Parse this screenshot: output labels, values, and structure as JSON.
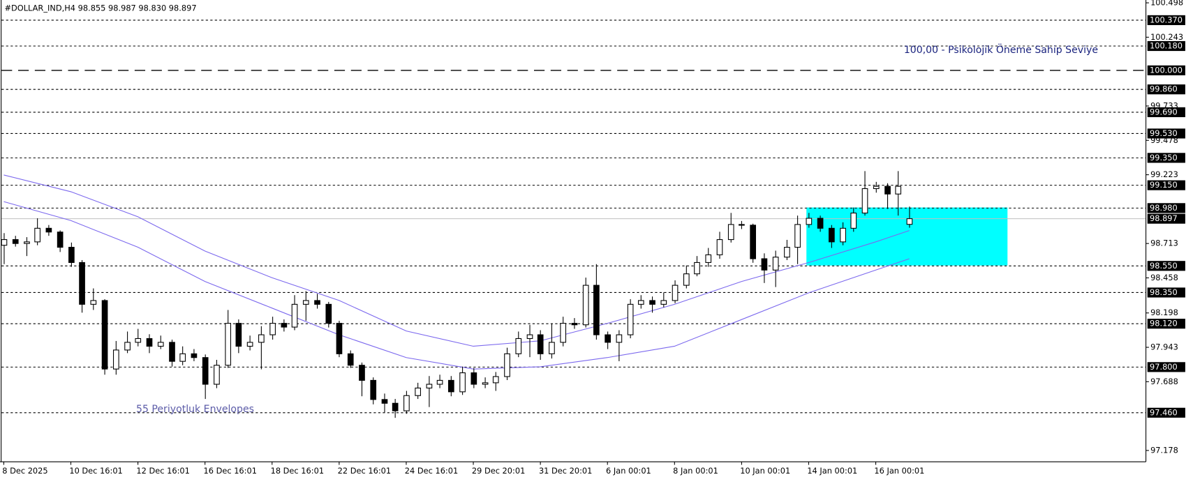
{
  "chart_data": {
    "type": "candlestick",
    "title": "#DOLLAR_IND,H4  98.855 98.987 98.830 98.897",
    "annotations": [
      "100,00 -  Psikolojik Öneme Sahip Seviye",
      "55 Periyotluk Envelopes"
    ],
    "categories": [
      "8 Dec 2025",
      null,
      null,
      null,
      null,
      null,
      "10 Dec 16:01",
      null,
      null,
      null,
      null,
      null,
      "12 Dec 16:01",
      null,
      null,
      null,
      null,
      null,
      "16 Dec 16:01",
      null,
      null,
      null,
      null,
      null,
      "18 Dec 16:01",
      null,
      null,
      null,
      null,
      null,
      "22 Dec 16:01",
      null,
      null,
      null,
      null,
      null,
      "24 Dec 16:01",
      null,
      null,
      null,
      null,
      null,
      "29 Dec 20:01",
      null,
      null,
      null,
      null,
      null,
      "31 Dec 20:01",
      null,
      null,
      null,
      null,
      null,
      "6 Jan 00:01",
      null,
      null,
      null,
      null,
      null,
      "8 Jan 00:01",
      null,
      null,
      null,
      null,
      null,
      "10 Jan 00:01",
      null,
      null,
      null,
      null,
      null,
      "14 Jan 00:01",
      null,
      null,
      null,
      null,
      null,
      "16 Jan 00:01",
      null,
      null,
      null
    ],
    "candles": [
      [
        98.7,
        98.79,
        98.56,
        98.742
      ],
      [
        98.742,
        98.77,
        98.69,
        98.713
      ],
      [
        98.713,
        98.76,
        98.62,
        98.725
      ],
      [
        98.725,
        98.9,
        98.7,
        98.826
      ],
      [
        98.826,
        98.85,
        98.77,
        98.798
      ],
      [
        98.798,
        98.81,
        98.65,
        98.685
      ],
      [
        98.685,
        98.72,
        98.54,
        98.572
      ],
      [
        98.572,
        98.59,
        98.2,
        98.262
      ],
      [
        98.262,
        98.38,
        98.22,
        98.29
      ],
      [
        98.29,
        98.3,
        97.74,
        97.782
      ],
      [
        97.782,
        97.99,
        97.74,
        97.923
      ],
      [
        97.923,
        98.06,
        97.9,
        97.98
      ],
      [
        97.98,
        98.08,
        97.95,
        98.008
      ],
      [
        98.008,
        98.04,
        97.9,
        97.951
      ],
      [
        97.951,
        98.03,
        97.93,
        97.98
      ],
      [
        97.98,
        98.0,
        97.8,
        97.839
      ],
      [
        97.839,
        97.95,
        97.81,
        97.895
      ],
      [
        97.895,
        97.93,
        97.84,
        97.867
      ],
      [
        97.867,
        97.89,
        97.56,
        97.669
      ],
      [
        97.669,
        97.85,
        97.64,
        97.81
      ],
      [
        97.81,
        98.22,
        97.79,
        98.121
      ],
      [
        98.121,
        98.15,
        97.9,
        97.951
      ],
      [
        97.951,
        98.03,
        97.92,
        97.98
      ],
      [
        97.98,
        98.1,
        97.78,
        98.036
      ],
      [
        98.036,
        98.17,
        98.0,
        98.121
      ],
      [
        98.121,
        98.15,
        98.06,
        98.093
      ],
      [
        98.093,
        98.33,
        98.07,
        98.262
      ],
      [
        98.262,
        98.36,
        98.14,
        98.29
      ],
      [
        98.29,
        98.34,
        98.23,
        98.262
      ],
      [
        98.262,
        98.28,
        98.09,
        98.121
      ],
      [
        98.121,
        98.14,
        97.87,
        97.895
      ],
      [
        97.895,
        97.92,
        97.79,
        97.81
      ],
      [
        97.81,
        97.83,
        97.58,
        97.698
      ],
      [
        97.698,
        97.72,
        97.52,
        97.556
      ],
      [
        97.556,
        97.6,
        97.46,
        97.528
      ],
      [
        97.528,
        97.56,
        97.42,
        97.472
      ],
      [
        97.472,
        97.62,
        97.45,
        97.585
      ],
      [
        97.585,
        97.68,
        97.56,
        97.641
      ],
      [
        97.641,
        97.73,
        97.5,
        97.669
      ],
      [
        97.669,
        97.74,
        97.64,
        97.698
      ],
      [
        97.698,
        97.73,
        97.58,
        97.613
      ],
      [
        97.613,
        97.8,
        97.59,
        97.754
      ],
      [
        97.754,
        97.79,
        97.64,
        97.669
      ],
      [
        97.669,
        97.72,
        97.64,
        97.68
      ],
      [
        97.68,
        97.76,
        97.62,
        97.726
      ],
      [
        97.726,
        97.94,
        97.7,
        97.895
      ],
      [
        97.895,
        98.06,
        97.87,
        98.008
      ],
      [
        98.008,
        98.11,
        97.87,
        98.036
      ],
      [
        98.036,
        98.07,
        97.85,
        97.895
      ],
      [
        97.895,
        98.12,
        97.86,
        97.98
      ],
      [
        97.98,
        98.17,
        97.95,
        98.121
      ],
      [
        98.121,
        98.16,
        98.08,
        98.11
      ],
      [
        98.11,
        98.46,
        98.09,
        98.403
      ],
      [
        98.403,
        98.56,
        98.0,
        98.036
      ],
      [
        98.036,
        98.06,
        97.93,
        97.98
      ],
      [
        97.98,
        98.07,
        97.84,
        98.036
      ],
      [
        98.036,
        98.3,
        98.01,
        98.262
      ],
      [
        98.262,
        98.33,
        98.23,
        98.29
      ],
      [
        98.29,
        98.32,
        98.2,
        98.262
      ],
      [
        98.262,
        98.35,
        98.24,
        98.29
      ],
      [
        98.29,
        98.44,
        98.27,
        98.403
      ],
      [
        98.403,
        98.55,
        98.38,
        98.488
      ],
      [
        98.488,
        98.62,
        98.47,
        98.572
      ],
      [
        98.572,
        98.68,
        98.54,
        98.629
      ],
      [
        98.629,
        98.8,
        98.6,
        98.742
      ],
      [
        98.742,
        98.94,
        98.72,
        98.854
      ],
      [
        98.854,
        98.88,
        98.82,
        98.849
      ],
      [
        98.849,
        98.86,
        98.57,
        98.6
      ],
      [
        98.6,
        98.64,
        98.42,
        98.516
      ],
      [
        98.516,
        98.66,
        98.39,
        98.612
      ],
      [
        98.612,
        98.74,
        98.59,
        98.685
      ],
      [
        98.685,
        98.92,
        98.56,
        98.854
      ],
      [
        98.854,
        98.94,
        98.83,
        98.9
      ],
      [
        98.9,
        98.92,
        98.8,
        98.826
      ],
      [
        98.826,
        98.85,
        98.68,
        98.725
      ],
      [
        98.725,
        98.87,
        98.7,
        98.826
      ],
      [
        98.826,
        98.98,
        98.8,
        98.939
      ],
      [
        98.939,
        99.25,
        98.92,
        99.12
      ],
      [
        99.12,
        99.17,
        99.09,
        99.137
      ],
      [
        99.137,
        99.16,
        98.97,
        99.08
      ],
      [
        99.08,
        99.25,
        98.92,
        99.137
      ],
      [
        98.855,
        98.987,
        98.83,
        98.897
      ]
    ],
    "envelopes": [
      {
        "color": "#7b68ee",
        "x": [
          0,
          6,
          12,
          18,
          24,
          30,
          36,
          42,
          48,
          54,
          60,
          66,
          72,
          78,
          81
        ],
        "values": [
          99.221,
          99.097,
          98.911,
          98.657,
          98.459,
          98.29,
          98.064,
          97.951,
          97.991,
          98.121,
          98.262,
          98.431,
          98.572,
          98.725,
          98.809
        ]
      },
      {
        "color": "#7b68ee",
        "x": [
          0,
          6,
          12,
          18,
          24,
          30,
          36,
          42,
          48,
          54,
          60,
          66,
          72,
          78,
          81
        ],
        "values": [
          99.024,
          98.883,
          98.685,
          98.431,
          98.234,
          98.036,
          97.867,
          97.782,
          97.799,
          97.867,
          97.951,
          98.149,
          98.347,
          98.516,
          98.6
        ]
      }
    ],
    "zone": {
      "top": 98.98,
      "bottom": 98.55,
      "start": "14 Jan 00:01",
      "color": "#00ffff"
    },
    "ylim": [
      97.094,
      100.519
    ],
    "yticks": [
      100.498,
      100.243,
      99.733,
      99.478,
      99.223,
      98.713,
      98.458,
      98.198,
      97.943,
      97.688,
      97.178
    ],
    "levels": [
      {
        "value": 100.37,
        "label": "100.370",
        "style": "dash"
      },
      {
        "value": 100.18,
        "label": "100.180",
        "style": "dash"
      },
      {
        "value": 100,
        "label": "100.000",
        "style": "long-dash"
      },
      {
        "value": 99.86,
        "label": "99.860",
        "style": "dash"
      },
      {
        "value": 99.69,
        "label": "99.690",
        "style": "dash"
      },
      {
        "value": 99.53,
        "label": "99.530",
        "style": "dash"
      },
      {
        "value": 99.35,
        "label": "99.350",
        "style": "dash"
      },
      {
        "value": 99.15,
        "label": "99.150",
        "style": "dash"
      },
      {
        "value": 98.98,
        "label": "98.980",
        "style": "dash"
      },
      {
        "value": 98.55,
        "label": "98.550",
        "style": "dash"
      },
      {
        "value": 98.35,
        "label": "98.350",
        "style": "dash"
      },
      {
        "value": 98.12,
        "label": "98.120",
        "style": "dash"
      },
      {
        "value": 97.8,
        "label": "97.800",
        "style": "dash"
      },
      {
        "value": 97.46,
        "label": "97.460",
        "style": "dash"
      }
    ],
    "current_price": 98.897,
    "up_color": "#ffffff",
    "down_color": "#000000"
  }
}
